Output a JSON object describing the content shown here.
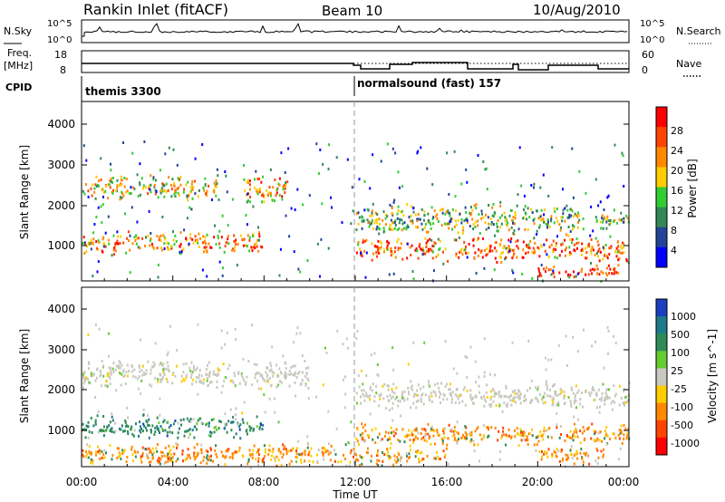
{
  "header": {
    "station": "Rankin Inlet (fitACF)",
    "beam": "Beam 10",
    "date": "10/Aug/2010"
  },
  "noise_panel": {
    "left_label": "N.Sky",
    "right_label": "N.Search",
    "left_ticks": [
      "10^5",
      "10^0"
    ],
    "right_ticks": [
      "10^5",
      "10^0"
    ]
  },
  "freq_panel": {
    "left_label_1": "Freq.",
    "left_label_2": "[MHz]",
    "left_ticks": [
      "18",
      "8"
    ],
    "right_label": "Nave",
    "right_ticks": [
      "60",
      "0"
    ]
  },
  "cpid_panel": {
    "label": "CPID",
    "segments": [
      {
        "start_hour": 0,
        "text": "themis 3300"
      },
      {
        "start_hour": 12,
        "text": "normalsound (fast) 157"
      }
    ]
  },
  "power_panel": {
    "ylabel": "Slant Range [km]",
    "yticks": [
      "4000",
      "3000",
      "2000",
      "1000"
    ],
    "colorbar_label": "Power [dB]",
    "colorbar_ticks": [
      "28",
      "24",
      "20",
      "16",
      "12",
      "8",
      "4"
    ],
    "colorbar_colors": [
      "#ff0000",
      "#ff4400",
      "#ff8800",
      "#ffcc00",
      "#33cc33",
      "#338855",
      "#224499",
      "#0000ff"
    ]
  },
  "velocity_panel": {
    "ylabel": "Slant Range [km]",
    "yticks": [
      "4000",
      "3000",
      "2000",
      "1000"
    ],
    "colorbar_label": "Velocity [m s^-1]",
    "colorbar_ticks": [
      "1000",
      "500",
      "100",
      "25",
      "-25",
      "-100",
      "-500",
      "-1000"
    ],
    "colorbar_colors": [
      "#1a3fbf",
      "#1e7a8a",
      "#2e8b57",
      "#66cc33",
      "#c8c8c0",
      "#ffcc00",
      "#ff8800",
      "#ff4400",
      "#ff0000"
    ]
  },
  "xaxis": {
    "ticks": [
      "00:00",
      "04:00",
      "08:00",
      "12:00",
      "16:00",
      "20:00",
      "00:00"
    ],
    "label": "Time UT"
  },
  "chart_data": {
    "type": "heatmap",
    "title": "Rankin Inlet (fitACF)  Beam 10  10/Aug/2010",
    "xlabel": "Time UT",
    "ylabel": "Slant Range [km]",
    "xlim_hours": [
      0,
      24
    ],
    "ylim_km": [
      180,
      4600
    ],
    "power_bands": [
      {
        "t0": 0.0,
        "t1": 6.0,
        "r0": 2150,
        "r1": 2850,
        "level": 0.55
      },
      {
        "t0": 0.0,
        "t1": 8.0,
        "r0": 850,
        "r1": 1450,
        "level": 0.7
      },
      {
        "t0": 7.0,
        "t1": 9.0,
        "r0": 2050,
        "r1": 2850,
        "level": 0.65
      },
      {
        "t0": 12.0,
        "t1": 24.0,
        "r0": 650,
        "r1": 1300,
        "level": 0.75
      },
      {
        "t0": 12.0,
        "t1": 22.0,
        "r0": 1300,
        "r1": 2150,
        "level": 0.45
      },
      {
        "t0": 20.0,
        "t1": 23.5,
        "r0": 250,
        "r1": 650,
        "level": 0.9
      },
      {
        "t0": 22.5,
        "t1": 24.0,
        "r0": 1500,
        "r1": 2000,
        "level": 0.45
      }
    ],
    "velocity_bands": [
      {
        "t0": 0.0,
        "t1": 10.0,
        "r0": 2100,
        "r1": 2850,
        "class": "low"
      },
      {
        "t0": 0.0,
        "t1": 8.0,
        "r0": 900,
        "r1": 1500,
        "class": "positive"
      },
      {
        "t0": 12.0,
        "t1": 24.0,
        "r0": 1600,
        "r1": 2300,
        "class": "low"
      },
      {
        "t0": 12.0,
        "t1": 24.0,
        "r0": 700,
        "r1": 1300,
        "class": "negative"
      },
      {
        "t0": 0.0,
        "t1": 16.0,
        "r0": 200,
        "r1": 800,
        "class": "negative"
      },
      {
        "t0": 20.0,
        "t1": 23.0,
        "r0": 250,
        "r1": 750,
        "class": "negative"
      }
    ]
  }
}
